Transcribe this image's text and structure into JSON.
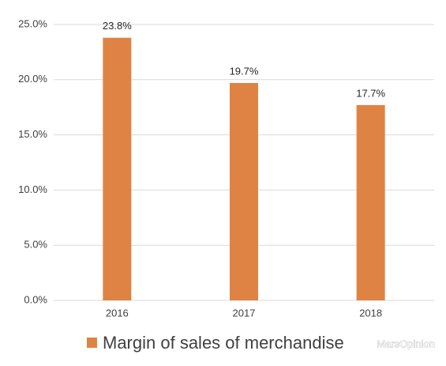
{
  "chart_data": {
    "type": "bar",
    "categories": [
      "2016",
      "2017",
      "2018"
    ],
    "series": [
      {
        "name": "Margin of sales of merchandise",
        "color": "#df8344",
        "values": [
          23.8,
          19.7,
          17.7
        ],
        "value_labels": [
          "23.8%",
          "19.7%",
          "17.7%"
        ]
      }
    ],
    "ylim": [
      0,
      25
    ],
    "yticks": [
      {
        "value": 0,
        "label": "0.0%"
      },
      {
        "value": 5,
        "label": "5.0%"
      },
      {
        "value": 10,
        "label": "10.0%"
      },
      {
        "value": 15,
        "label": "15.0%"
      },
      {
        "value": 20,
        "label": "20.0%"
      },
      {
        "value": 25,
        "label": "25.0%"
      }
    ],
    "grid": true,
    "legend": "bottom",
    "watermark": "MarsOpinion"
  }
}
